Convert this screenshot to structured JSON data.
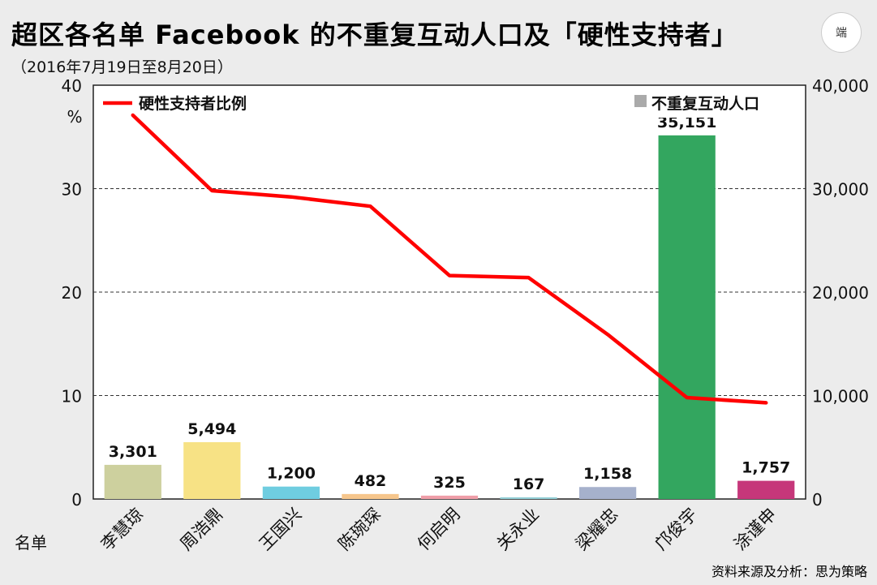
{
  "header": {
    "title": "超区各名单 Facebook 的不重复互动人口及「硬性支持者」",
    "subtitle": "（2016年7月19日至8月20日）",
    "logo_text": "端"
  },
  "footer": {
    "source": "资料来源及分析：思为策略"
  },
  "colors": {
    "line": "#ff0000",
    "legend_bar": "#aaaaaa"
  },
  "chart_data": {
    "type": "bar",
    "xlabel": "名单",
    "categories": [
      "李慧琼",
      "周浩鼎",
      "王国兴",
      "陈琬琛",
      "何启明",
      "关永业",
      "梁耀忠",
      "邝俊宇",
      "涂谨申"
    ],
    "bar_colors": [
      "#cdd09e",
      "#f7e285",
      "#6fcde0",
      "#f6c68c",
      "#ef9ea8",
      "#93cfd6",
      "#a6b1cc",
      "#33a65f",
      "#c6377a"
    ],
    "series": [
      {
        "name": "不重复互动人口",
        "axis": "right",
        "values": [
          3301,
          5494,
          1200,
          482,
          325,
          167,
          1158,
          35151,
          1757
        ],
        "value_labels": [
          "3,301",
          "5,494",
          "1,200",
          "482",
          "325",
          "167",
          "1,158",
          "35,151",
          "1,757"
        ]
      },
      {
        "name": "硬性支持者比例",
        "axis": "left",
        "type": "line",
        "values": [
          37.1,
          29.8,
          29.2,
          28.3,
          21.6,
          21.4,
          15.9,
          9.8,
          9.3
        ]
      }
    ],
    "y_left": {
      "ylim": [
        0,
        40
      ],
      "ticks": [
        "0",
        "10",
        "20",
        "30",
        "40"
      ],
      "unit": "%"
    },
    "y_right": {
      "ylim": [
        0,
        40000
      ],
      "ticks": [
        "0",
        "10,000",
        "20,000",
        "30,000",
        "40,000"
      ]
    },
    "legend": {
      "line": "top-left",
      "bar": "top-right"
    },
    "grid": true
  }
}
